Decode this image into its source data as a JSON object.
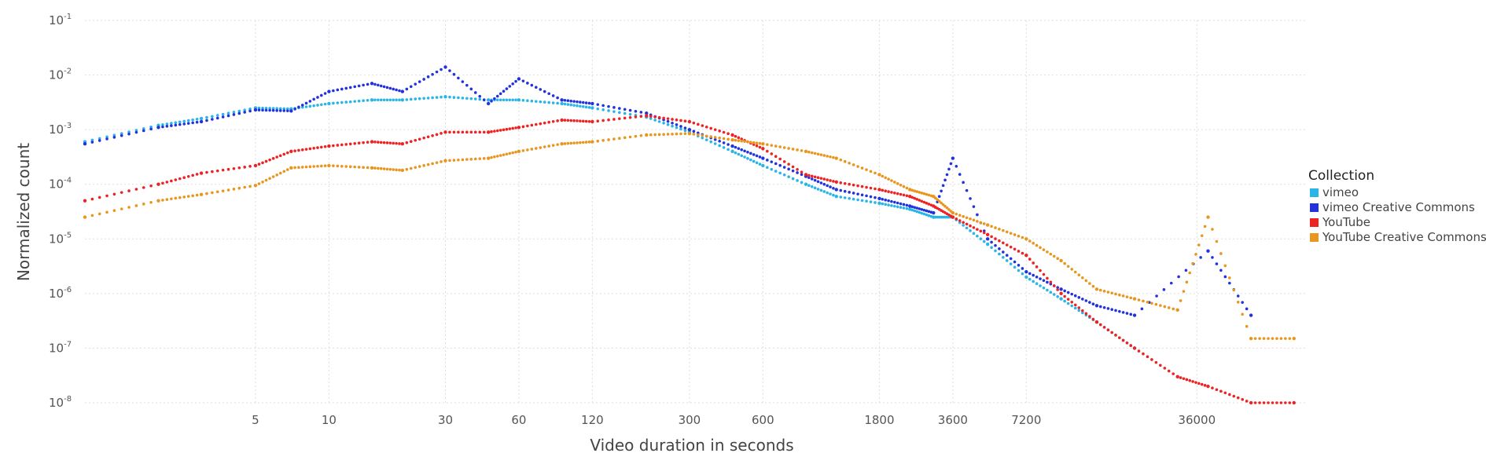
{
  "chart_data": {
    "type": "scatter",
    "title": "",
    "xlabel": "Video duration in seconds",
    "ylabel": "Normalized count",
    "x_scale": "log",
    "y_scale": "log",
    "xlim": [
      1,
      100000
    ],
    "ylim": [
      1e-08,
      0.1
    ],
    "x_ticks": [
      {
        "value": 5,
        "label": "5"
      },
      {
        "value": 10,
        "label": "10"
      },
      {
        "value": 30,
        "label": "30"
      },
      {
        "value": 60,
        "label": "60"
      },
      {
        "value": 120,
        "label": "120"
      },
      {
        "value": 300,
        "label": "300"
      },
      {
        "value": 600,
        "label": "600"
      },
      {
        "value": 1800,
        "label": "1800"
      },
      {
        "value": 3600,
        "label": "3600"
      },
      {
        "value": 7200,
        "label": "7200"
      },
      {
        "value": 36000,
        "label": "36000"
      }
    ],
    "y_ticks": [
      {
        "exp": -1,
        "base": "10",
        "sup": "-1"
      },
      {
        "exp": -2,
        "base": "10",
        "sup": "-2"
      },
      {
        "exp": -3,
        "base": "10",
        "sup": "-3"
      },
      {
        "exp": -4,
        "base": "10",
        "sup": "-4"
      },
      {
        "exp": -5,
        "base": "10",
        "sup": "-5"
      },
      {
        "exp": -6,
        "base": "10",
        "sup": "-6"
      },
      {
        "exp": -7,
        "base": "10",
        "sup": "-7"
      },
      {
        "exp": -8,
        "base": "10",
        "sup": "-8"
      }
    ],
    "grid": true,
    "legend_title": "Collection",
    "legend_position": "right",
    "series": [
      {
        "name": "vimeo",
        "color": "#29b5e8",
        "points": [
          [
            1,
            0.0006
          ],
          [
            2,
            0.0012
          ],
          [
            3,
            0.0016
          ],
          [
            5,
            0.0025
          ],
          [
            7,
            0.0024
          ],
          [
            10,
            0.003
          ],
          [
            15,
            0.0035
          ],
          [
            20,
            0.0035
          ],
          [
            30,
            0.004
          ],
          [
            45,
            0.0035
          ],
          [
            60,
            0.0035
          ],
          [
            90,
            0.003
          ],
          [
            120,
            0.0025
          ],
          [
            200,
            0.0017
          ],
          [
            300,
            0.0009
          ],
          [
            450,
            0.0004
          ],
          [
            600,
            0.00022
          ],
          [
            900,
            0.0001
          ],
          [
            1200,
            6e-05
          ],
          [
            1800,
            4.5e-05
          ],
          [
            2400,
            3.5e-05
          ],
          [
            3000,
            2.5e-05
          ],
          [
            3600,
            2.5e-05
          ],
          [
            5000,
            8e-06
          ],
          [
            7200,
            2e-06
          ],
          [
            10000,
            8e-07
          ],
          [
            14000,
            3e-07
          ],
          [
            20000,
            1e-07
          ]
        ]
      },
      {
        "name": "vimeo Creative Commons",
        "color": "#2233dd",
        "points": [
          [
            1,
            0.00055
          ],
          [
            2,
            0.0011
          ],
          [
            3,
            0.0014
          ],
          [
            5,
            0.0023
          ],
          [
            7,
            0.0022
          ],
          [
            10,
            0.005
          ],
          [
            15,
            0.007
          ],
          [
            20,
            0.005
          ],
          [
            30,
            0.014
          ],
          [
            45,
            0.003
          ],
          [
            60,
            0.0085
          ],
          [
            90,
            0.0035
          ],
          [
            120,
            0.003
          ],
          [
            200,
            0.002
          ],
          [
            300,
            0.001
          ],
          [
            450,
            0.0005
          ],
          [
            600,
            0.0003
          ],
          [
            900,
            0.00014
          ],
          [
            1200,
            8e-05
          ],
          [
            1800,
            5.5e-05
          ],
          [
            2400,
            4e-05
          ],
          [
            3000,
            3e-05
          ],
          [
            3600,
            0.0003
          ],
          [
            5000,
            1e-05
          ],
          [
            7200,
            2.5e-06
          ],
          [
            10000,
            1.2e-06
          ],
          [
            14000,
            6e-07
          ],
          [
            20000,
            4e-07
          ],
          [
            40000,
            6e-06
          ],
          [
            60000,
            4e-07
          ]
        ]
      },
      {
        "name": "YouTube",
        "color": "#ee2222",
        "points": [
          [
            1,
            5e-05
          ],
          [
            2,
            0.0001
          ],
          [
            3,
            0.00016
          ],
          [
            5,
            0.00022
          ],
          [
            7,
            0.0004
          ],
          [
            10,
            0.0005
          ],
          [
            15,
            0.0006
          ],
          [
            20,
            0.00055
          ],
          [
            30,
            0.0009
          ],
          [
            45,
            0.0009
          ],
          [
            60,
            0.0011
          ],
          [
            90,
            0.0015
          ],
          [
            120,
            0.0014
          ],
          [
            200,
            0.0018
          ],
          [
            300,
            0.0014
          ],
          [
            450,
            0.0008
          ],
          [
            600,
            0.00045
          ],
          [
            900,
            0.00015
          ],
          [
            1200,
            0.00011
          ],
          [
            1800,
            8e-05
          ],
          [
            2400,
            6e-05
          ],
          [
            3000,
            4e-05
          ],
          [
            3600,
            2.5e-05
          ],
          [
            5000,
            1.2e-05
          ],
          [
            7200,
            5e-06
          ],
          [
            10000,
            1e-06
          ],
          [
            14000,
            3e-07
          ],
          [
            20000,
            1e-07
          ],
          [
            30000,
            3e-08
          ],
          [
            40000,
            2e-08
          ],
          [
            60000,
            1e-08
          ],
          [
            90000,
            1e-08
          ]
        ]
      },
      {
        "name": "YouTube Creative Commons",
        "color": "#e8961e",
        "points": [
          [
            1,
            2.5e-05
          ],
          [
            2,
            5e-05
          ],
          [
            3,
            6.5e-05
          ],
          [
            5,
            9.5e-05
          ],
          [
            7,
            0.0002
          ],
          [
            10,
            0.00022
          ],
          [
            15,
            0.0002
          ],
          [
            20,
            0.00018
          ],
          [
            30,
            0.00027
          ],
          [
            45,
            0.0003
          ],
          [
            60,
            0.0004
          ],
          [
            90,
            0.00055
          ],
          [
            120,
            0.0006
          ],
          [
            200,
            0.0008
          ],
          [
            300,
            0.00085
          ],
          [
            450,
            0.00065
          ],
          [
            600,
            0.00055
          ],
          [
            900,
            0.0004
          ],
          [
            1200,
            0.0003
          ],
          [
            1800,
            0.00015
          ],
          [
            2400,
            8e-05
          ],
          [
            3000,
            6e-05
          ],
          [
            3600,
            3e-05
          ],
          [
            5000,
            1.8e-05
          ],
          [
            7200,
            1e-05
          ],
          [
            10000,
            4e-06
          ],
          [
            14000,
            1.2e-06
          ],
          [
            20000,
            8e-07
          ],
          [
            30000,
            5e-07
          ],
          [
            40000,
            2.5e-05
          ],
          [
            60000,
            1.5e-07
          ],
          [
            90000,
            1.5e-07
          ]
        ]
      }
    ]
  }
}
